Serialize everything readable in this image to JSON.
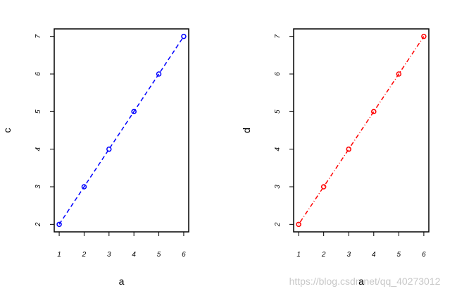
{
  "chart_data": [
    {
      "type": "line",
      "xlabel": "a",
      "ylabel": "c",
      "x": [
        1,
        2,
        3,
        4,
        5,
        6
      ],
      "values": [
        2,
        3,
        4,
        5,
        6,
        7
      ],
      "color": "#0000ff",
      "line_style": "dashed",
      "marker": "circle",
      "xlim": [
        0.8,
        6.2
      ],
      "ylim": [
        1.8,
        7.2
      ],
      "xticks": [
        1,
        2,
        3,
        4,
        5,
        6
      ],
      "yticks": [
        2,
        3,
        4,
        5,
        6,
        7
      ]
    },
    {
      "type": "line",
      "xlabel": "a",
      "ylabel": "d",
      "x": [
        1,
        2,
        3,
        4,
        5,
        6
      ],
      "values": [
        2,
        3,
        4,
        5,
        6,
        7
      ],
      "color": "#ff0000",
      "line_style": "dotdash",
      "marker": "circle",
      "xlim": [
        0.8,
        6.2
      ],
      "ylim": [
        1.8,
        7.2
      ],
      "xticks": [
        1,
        2,
        3,
        4,
        5,
        6
      ],
      "yticks": [
        2,
        3,
        4,
        5,
        6,
        7
      ]
    }
  ],
  "watermark": "https://blog.csdn.net/qq_40273012"
}
